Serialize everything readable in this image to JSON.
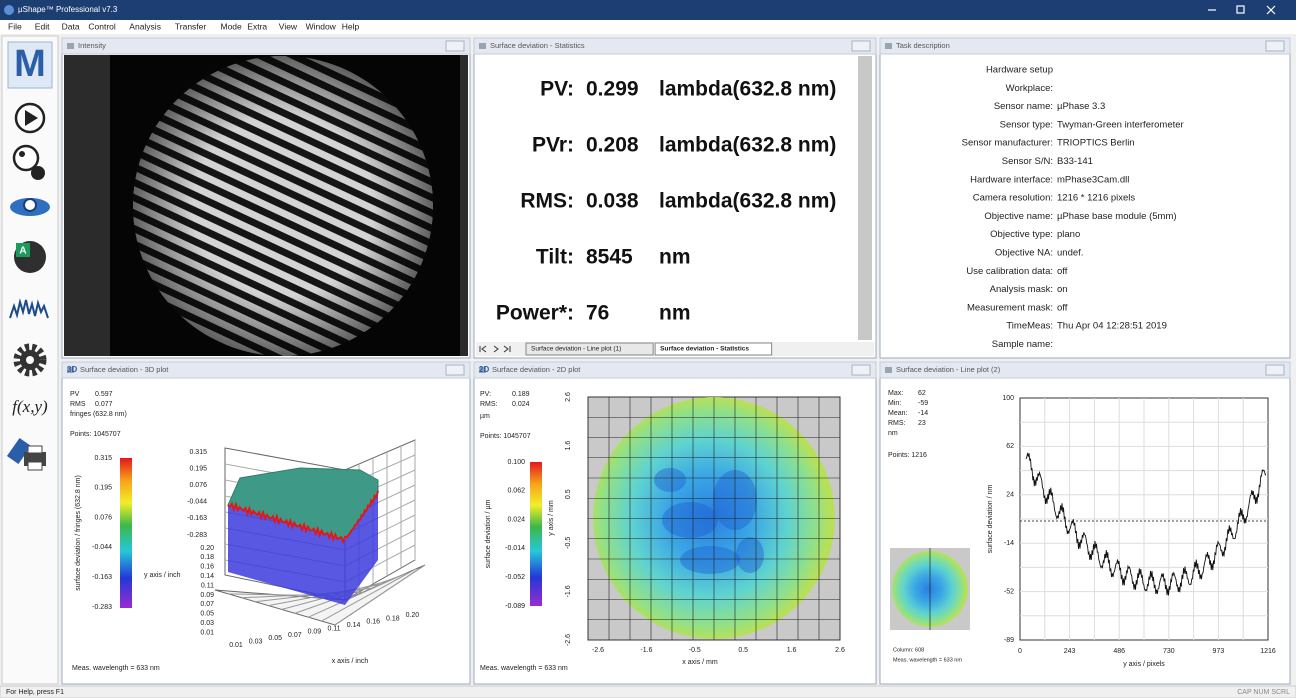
{
  "window": {
    "title": "µShape™ Professional v7.3",
    "status": "For Help, press F1",
    "indicators": "CAP NUM SCRL"
  },
  "menu": [
    "File",
    "Edit",
    "Data",
    "Control",
    "Analysis",
    "Transfer",
    "Mode",
    "Extra",
    "View",
    "Window",
    "Help"
  ],
  "toolbar": {
    "logo": "M",
    "function": "f(x,y)"
  },
  "intensity": {
    "title": "Intensity"
  },
  "statistics": {
    "title": "Surface deviation - Statistics",
    "rows": [
      {
        "label": "PV:",
        "value": "0.299",
        "unit": "lambda(632.8 nm)"
      },
      {
        "label": "PVr:",
        "value": "0.208",
        "unit": "lambda(632.8 nm)"
      },
      {
        "label": "RMS:",
        "value": "0.038",
        "unit": "lambda(632.8 nm)"
      },
      {
        "label": "Tilt:",
        "value": "8545",
        "unit": "nm"
      },
      {
        "label": "Power*:",
        "value": "76",
        "unit": "nm"
      }
    ],
    "tabs": [
      "Surface deviation - Line plot (1)",
      "Surface deviation - Statistics"
    ]
  },
  "task": {
    "title": "Task description",
    "rows": [
      {
        "key": "Hardware setup"
      },
      {
        "key": "Workplace:"
      },
      {
        "key": "Sensor name:",
        "value": "µPhase 3.3"
      },
      {
        "key": "Sensor type:",
        "value": "Twyman-Green interferometer"
      },
      {
        "key": "Sensor manufacturer:",
        "value": "TRIOPTICS Berlin"
      },
      {
        "key": "Sensor S/N:",
        "value": "B33-141"
      },
      {
        "key": "Hardware interface:",
        "value": "mPhase3Cam.dll"
      },
      {
        "key": "Camera resolution:",
        "value": "1216 * 1216 pixels"
      },
      {
        "key": "Objective name:",
        "value": "µPhase base module (5mm)"
      },
      {
        "key": "Objective type:",
        "value": "plano"
      },
      {
        "key": "Objective NA:",
        "value": "undef."
      },
      {
        "key": "Use calibration data:",
        "value": "off"
      },
      {
        "key": "Analysis mask:",
        "value": "on"
      },
      {
        "key": "Measurement mask:",
        "value": "off"
      },
      {
        "key": "TimeMeas:",
        "value": "Thu Apr 04 12:28:51 2019"
      },
      {
        "key": "Sample name:"
      }
    ]
  },
  "plot3d": {
    "badge": "3D",
    "title": "Surface deviation - 3D plot",
    "stats": [
      {
        "label": "PV",
        "value": "0.597"
      },
      {
        "label": "RMS",
        "value": "0.077"
      }
    ],
    "unit": "fringes (632.8 nm)",
    "points": "Points: 1045707",
    "colorbar_ticks": [
      "0.315",
      "0.195",
      "0.076",
      "-0.044",
      "-0.163",
      "-0.283"
    ],
    "colorbar_label": "surface deviation / fringes (632.8 nm)",
    "y_label": "y axis / inch",
    "x_label": "x axis / inch",
    "y_ticks": [
      "0.20",
      "0.18",
      "0.16",
      "0.14",
      "0.11",
      "0.09",
      "0.07",
      "0.05",
      "0.03",
      "0.01"
    ],
    "x_ticks": [
      "0.01",
      "0.03",
      "0.05",
      "0.07",
      "0.09",
      "0.11",
      "0.14",
      "0.16",
      "0.18",
      "0.20"
    ],
    "footer": "Meas. wavelength = 633 nm"
  },
  "plot2d": {
    "badge": "2D",
    "title": "Surface deviation - 2D plot",
    "stats": [
      {
        "label": "PV:",
        "value": "0.189"
      },
      {
        "label": "RMS:",
        "value": "0.024"
      }
    ],
    "unit": "µm",
    "points": "Points:  1045707",
    "colorbar_ticks": [
      "0.100",
      "0.062",
      "0.024",
      "-0.014",
      "-0.052",
      "-0.089"
    ],
    "colorbar_label": "surface deviation / µm",
    "y_ticks": [
      "2.6",
      "1.6",
      "0.5",
      "-0.5",
      "-1.6",
      "-2.6"
    ],
    "x_ticks": [
      "-2.6",
      "-1.6",
      "-0.5",
      "0.5",
      "1.6",
      "2.6"
    ],
    "x_label": "x axis / mm",
    "y_label": "y axis / mm",
    "footer": "Meas. wavelength = 633 nm"
  },
  "lineplot": {
    "title": "Surface deviation - Line plot (2)",
    "stats": [
      {
        "label": "Max:",
        "value": "62"
      },
      {
        "label": "Min:",
        "value": "-59"
      },
      {
        "label": "Mean:",
        "value": "-14"
      },
      {
        "label": "RMS:",
        "value": "23"
      }
    ],
    "unit": "nm",
    "points": "Points: 1216",
    "column": "Column: 608",
    "footer": "Meas. wavelength = 633 nm",
    "y_ticks": [
      "100",
      "62",
      "24",
      "-14",
      "-52",
      "-89"
    ],
    "x_ticks": [
      "0",
      "243",
      "486",
      "730",
      "973",
      "1216"
    ],
    "x_label": "y axis / pixels",
    "y_label": "surface deviation / nm"
  }
}
